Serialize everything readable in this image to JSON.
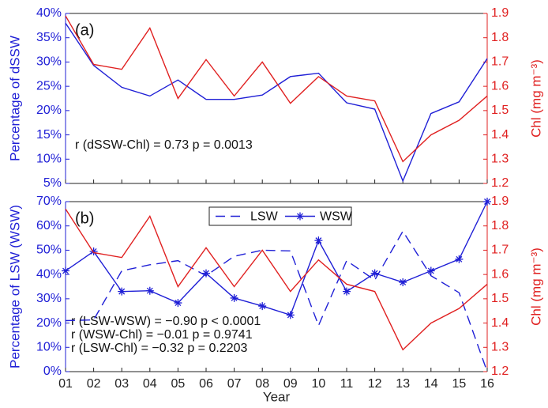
{
  "chart_data": [
    {
      "type": "line",
      "label": "(a)",
      "ylabel": "Percentage of dSSW",
      "y2label": "Chl (mg m⁻³)",
      "annotations": [
        "r (dSSW-Chl) = 0.73  p = 0.0013"
      ],
      "ylim": [
        5,
        40
      ],
      "yticks": [
        {
          "value": 5,
          "label": "5%"
        },
        {
          "value": 10,
          "label": "10%"
        },
        {
          "value": 15,
          "label": "15%"
        },
        {
          "value": 20,
          "label": "20%"
        },
        {
          "value": 25,
          "label": "25%"
        },
        {
          "value": 30,
          "label": "30%"
        },
        {
          "value": 35,
          "label": "35%"
        },
        {
          "value": 40,
          "label": "40%"
        }
      ],
      "y2lim": [
        1.2,
        1.9
      ],
      "y2ticks": [
        1.2,
        1.3,
        1.4,
        1.5,
        1.6,
        1.7,
        1.8,
        1.9
      ],
      "left_color": "#1f1fd6",
      "right_color": "#e02020",
      "series": [
        {
          "color": "#1f1fd6",
          "values": [
            38,
            29.3,
            24.8,
            23,
            26.3,
            22.3,
            22.3,
            23.2,
            27,
            27.7,
            21.6,
            20.3,
            5.5,
            19.4,
            21.8,
            30.7
          ]
        },
        {
          "color": "#e02020",
          "axis": "y2",
          "values": [
            1.89,
            1.69,
            1.67,
            1.84,
            1.55,
            1.71,
            1.56,
            1.7,
            1.53,
            1.64,
            1.56,
            1.54,
            1.29,
            1.4,
            1.46,
            1.56
          ]
        }
      ]
    },
    {
      "type": "line",
      "label": "(b)",
      "ylabel": "Percentage of LSW (WSW)",
      "y2label": "Chl (mg m⁻³)",
      "xlabel": "Year",
      "annotations": [
        "r (LSW-WSW) = −0.90  p < 0.0001",
        "r (WSW-Chl) = −0.01  p = 0.9741",
        "r (LSW-Chl) = −0.32  p = 0.2203"
      ],
      "categories": [
        "01",
        "02",
        "03",
        "04",
        "05",
        "06",
        "07",
        "08",
        "09",
        "10",
        "11",
        "12",
        "13",
        "14",
        "15",
        "16"
      ],
      "ylim": [
        0,
        70
      ],
      "yticks": [
        {
          "value": 0,
          "label": "0%"
        },
        {
          "value": 10,
          "label": "10%"
        },
        {
          "value": 20,
          "label": "20%"
        },
        {
          "value": 30,
          "label": "30%"
        },
        {
          "value": 40,
          "label": "40%"
        },
        {
          "value": 50,
          "label": "50%"
        },
        {
          "value": 60,
          "label": "60%"
        },
        {
          "value": 70,
          "label": "70%"
        }
      ],
      "y2lim": [
        1.2,
        1.9
      ],
      "y2ticks": [
        1.2,
        1.3,
        1.4,
        1.5,
        1.6,
        1.7,
        1.8,
        1.9
      ],
      "left_color": "#1f1fd6",
      "right_color": "#e02020",
      "series": [
        {
          "name": "LSW",
          "color": "#1f1fd6",
          "dash": true,
          "values": [
            21,
            21.3,
            41.5,
            44,
            45.7,
            39.5,
            47.5,
            50,
            49.7,
            19,
            45.7,
            37.7,
            57.8,
            39.5,
            32.5,
            0
          ]
        },
        {
          "name": "WSW",
          "color": "#1f1fd6",
          "marker": "star",
          "values": [
            41.5,
            49.5,
            33,
            33.3,
            28.3,
            40.5,
            30.3,
            27,
            23.3,
            54,
            33,
            40.5,
            36.8,
            41.5,
            46.3,
            70
          ]
        },
        {
          "color": "#e02020",
          "axis": "y2",
          "values": [
            1.87,
            1.69,
            1.67,
            1.84,
            1.55,
            1.71,
            1.55,
            1.7,
            1.53,
            1.66,
            1.56,
            1.53,
            1.29,
            1.4,
            1.46,
            1.56
          ]
        }
      ]
    }
  ]
}
